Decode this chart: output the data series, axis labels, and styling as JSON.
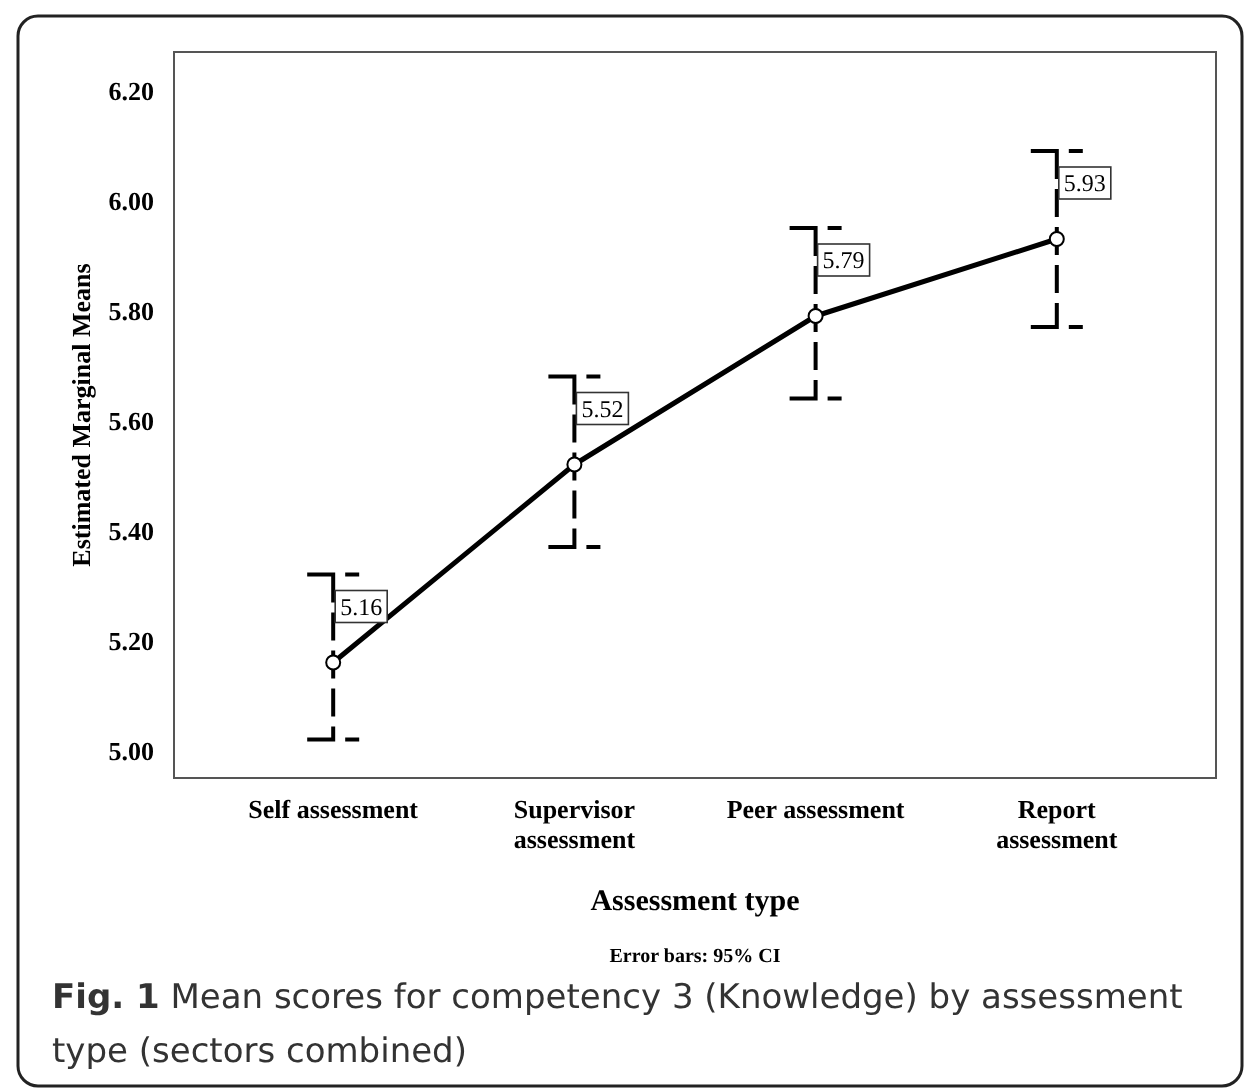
{
  "chart_data": {
    "type": "line",
    "xlabel": "Assessment type",
    "ylabel": "Estimated Marginal Means",
    "categories": [
      "Self assessment",
      "Supervisor assessment",
      "Peer assessment",
      "Report assessment"
    ],
    "series": [
      {
        "color": "#000000",
        "values": [
          5.16,
          5.52,
          5.79,
          5.93
        ],
        "errors": [
          [
            5.02,
            5.32
          ],
          [
            5.37,
            5.68
          ],
          [
            5.64,
            5.95
          ],
          [
            5.77,
            6.09
          ]
        ]
      }
    ],
    "ylim": [
      4.95,
      6.27
    ],
    "yticks": [
      {
        "value": 5.0,
        "label": "5.00"
      },
      {
        "value": 5.2,
        "label": "5.20"
      },
      {
        "value": 5.4,
        "label": "5.40"
      },
      {
        "value": 5.6,
        "label": "5.60"
      },
      {
        "value": 5.8,
        "label": "5.80"
      },
      {
        "value": 6.0,
        "label": "6.00"
      },
      {
        "value": 6.2,
        "label": "6.20"
      }
    ],
    "data_labels": true,
    "marker": "circle",
    "grid": false,
    "annotations": [
      "Error bars: 95% CI",
      "Fig. 1 Mean scores for competency 3 (Knowledge) by assessment type (sectors combined)"
    ]
  }
}
